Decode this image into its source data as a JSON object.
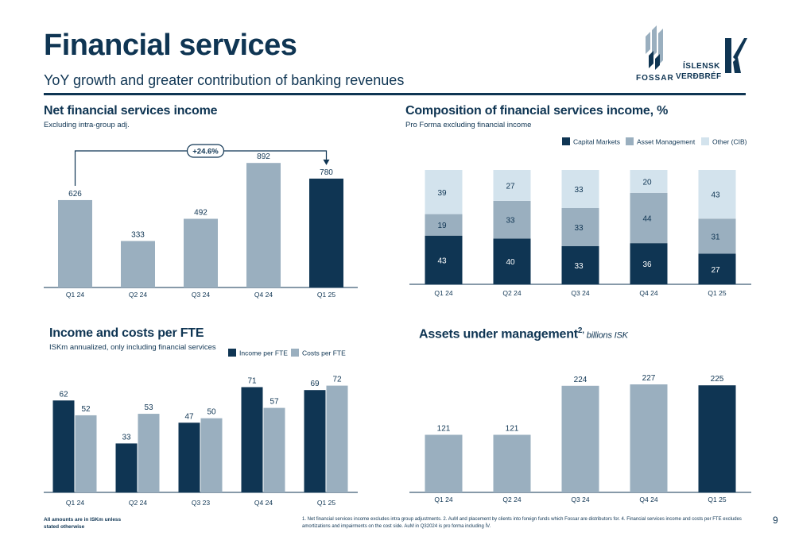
{
  "header": {
    "title": "Financial services",
    "subtitle": "YoY growth and greater contribution of banking revenues"
  },
  "logos": {
    "fossar": "FOSSAR",
    "islensk_1": "ÍSLENSK",
    "islensk_2": "VERÐBRÉF"
  },
  "colors": {
    "dark": "#0f3553",
    "mid": "#9aafbf",
    "light": "#d3e3ed"
  },
  "panels": {
    "nfs": {
      "title": "Net financial services income",
      "subtitle": "Excluding intra-group adj."
    },
    "comp": {
      "title": "Composition of financial services income, %",
      "subtitle": "Pro Forma excluding financial income"
    },
    "fte": {
      "title": "Income and costs per FTE",
      "subtitle": "ISKm annualized, only including financial services"
    },
    "aum": {
      "title": "Assets under management",
      "title_sup": "2,",
      "title_unit": " billions ISK"
    }
  },
  "chart_data": [
    {
      "id": "nfs",
      "type": "bar",
      "categories": [
        "Q1 24",
        "Q2 24",
        "Q3 24",
        "Q4 24",
        "Q1 25"
      ],
      "values": [
        626,
        333,
        492,
        892,
        780
      ],
      "highlight": [
        false,
        false,
        false,
        false,
        true
      ],
      "ylim": [
        0,
        950
      ],
      "annotation": "+24.6%"
    },
    {
      "id": "comp",
      "type": "bar",
      "stacked": true,
      "categories": [
        "Q1 24",
        "Q2 24",
        "Q3 24",
        "Q4 24",
        "Q1 25"
      ],
      "series": [
        {
          "name": "Capital Markets",
          "values": [
            43,
            40,
            33,
            36,
            27
          ]
        },
        {
          "name": "Asset Management",
          "values": [
            19,
            33,
            33,
            44,
            31
          ]
        },
        {
          "name": "Other (CIB)",
          "values": [
            39,
            27,
            33,
            20,
            43
          ]
        }
      ],
      "ylim": [
        0,
        100
      ],
      "legend": "top-right"
    },
    {
      "id": "fte",
      "type": "bar",
      "categories": [
        "Q1 24",
        "Q2 24",
        "Q3 23",
        "Q4 24",
        "Q1 25"
      ],
      "series": [
        {
          "name": "Income per FTE",
          "values": [
            62,
            33,
            47,
            71,
            69
          ]
        },
        {
          "name": "Costs per FTE",
          "values": [
            52,
            53,
            50,
            57,
            72
          ]
        }
      ],
      "ylim": [
        0,
        80
      ],
      "legend": "top-right"
    },
    {
      "id": "aum",
      "type": "bar",
      "categories": [
        "Q1 24",
        "Q2 24",
        "Q3 24",
        "Q4 24",
        "Q1 25"
      ],
      "values": [
        121,
        121,
        224,
        227,
        225
      ],
      "highlight": [
        false,
        false,
        false,
        false,
        true
      ],
      "ylim": [
        0,
        240
      ]
    }
  ],
  "footer": {
    "left": "All amounts are in ISKm unless stated otherwise",
    "right": "1. Net financial services income excludes intra group adjustments. 2. AuM and placement by clients into foreign funds which Fossar are distributors for. 4. Financial services income and costs per FTE excludes amortizations and impairments on the cost side. AuM in Q32024 is pro forma including ÍV.",
    "page": "9"
  }
}
